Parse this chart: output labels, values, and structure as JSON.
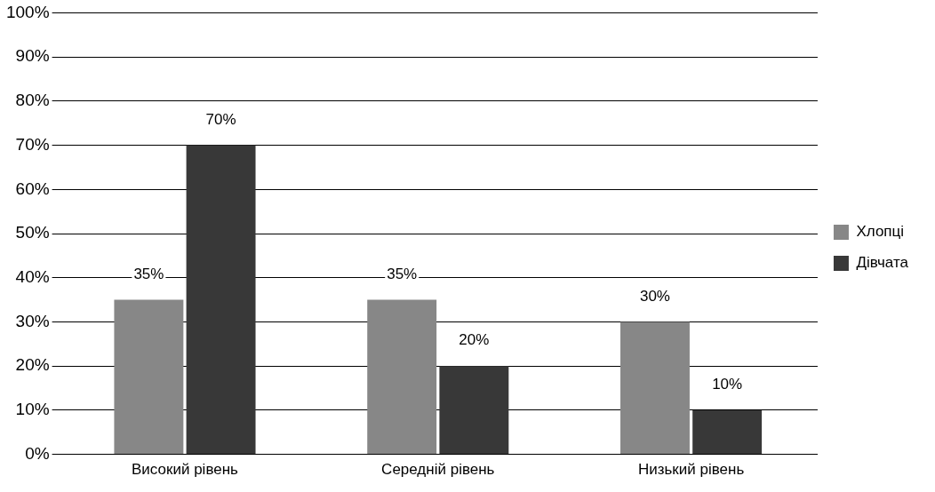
{
  "chart_data": {
    "type": "bar",
    "categories": [
      "Високий рівень",
      "Середній рівень",
      "Низький рівень"
    ],
    "series": [
      {
        "name": "Хлопці",
        "color": "#878787",
        "values": [
          35,
          35,
          30
        ],
        "value_labels": [
          "35%",
          "35%",
          "30%"
        ]
      },
      {
        "name": "Дівчата",
        "color": "#383838",
        "values": [
          70,
          20,
          10
        ],
        "value_labels": [
          "70%",
          "20%",
          "10%"
        ]
      }
    ],
    "ylim": [
      0,
      100
    ],
    "yticks": [
      {
        "value": 0,
        "label": "0%"
      },
      {
        "value": 10,
        "label": "10%"
      },
      {
        "value": 20,
        "label": "20%"
      },
      {
        "value": 30,
        "label": "30%"
      },
      {
        "value": 40,
        "label": "40%"
      },
      {
        "value": 50,
        "label": "50%"
      },
      {
        "value": 60,
        "label": "60%"
      },
      {
        "value": 70,
        "label": "70%"
      },
      {
        "value": 80,
        "label": "80%"
      },
      {
        "value": 90,
        "label": "90%"
      },
      {
        "value": 100,
        "label": "100%"
      }
    ],
    "grid": "y",
    "legend": "right"
  }
}
